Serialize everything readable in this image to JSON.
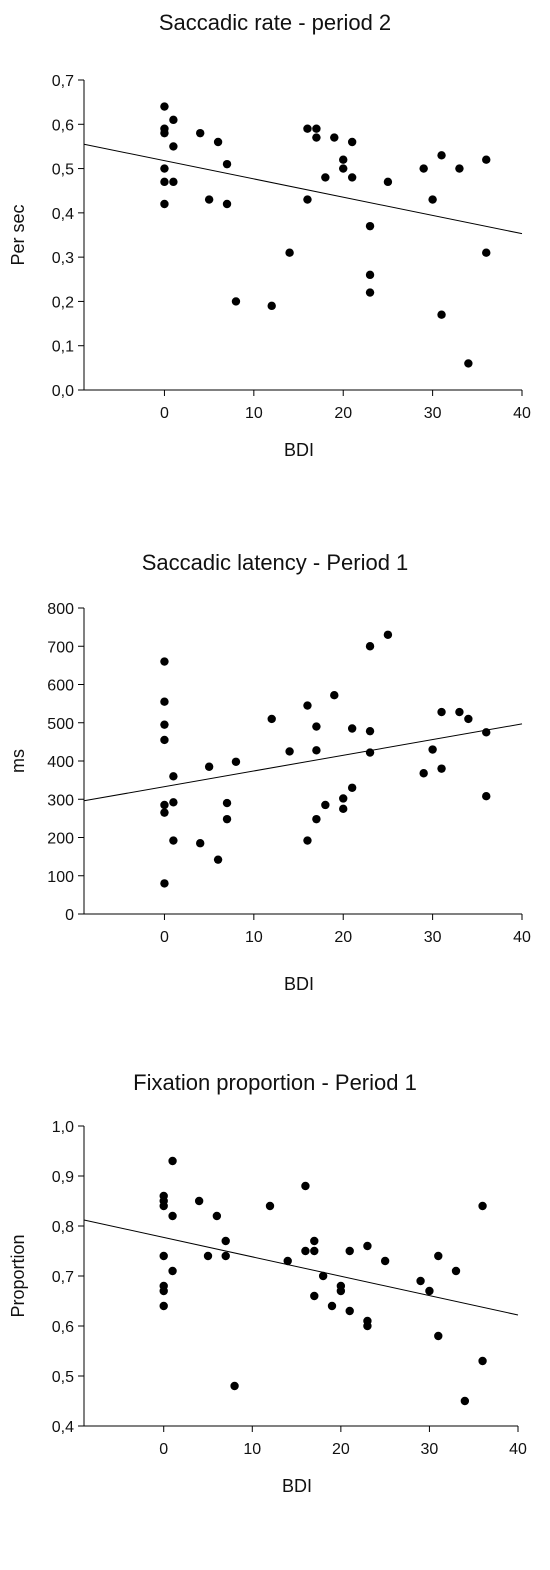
{
  "chart_data": [
    {
      "type": "scatter",
      "title": "Saccadic rate - period 2",
      "xlabel": "BDI",
      "ylabel": "Per sec",
      "xlim": [
        -9,
        40
      ],
      "ylim": [
        0,
        0.7
      ],
      "x_ticks": [
        "0",
        "10",
        "20",
        "30",
        "40"
      ],
      "x_tick_values": [
        0,
        10,
        20,
        30,
        40
      ],
      "y_ticks": [
        "0,0",
        "0,1",
        "0,2",
        "0,3",
        "0,4",
        "0,5",
        "0,6",
        "0,7"
      ],
      "y_tick_values": [
        0,
        0.1,
        0.2,
        0.3,
        0.4,
        0.5,
        0.6,
        0.7
      ],
      "grid": false,
      "legend": false,
      "trendline": {
        "x": [
          -9,
          40
        ],
        "y": [
          0.555,
          0.353
        ]
      },
      "points": [
        {
          "x": 0,
          "y": 0.64
        },
        {
          "x": 0,
          "y": 0.59
        },
        {
          "x": 0,
          "y": 0.58
        },
        {
          "x": 0,
          "y": 0.5
        },
        {
          "x": 0,
          "y": 0.47
        },
        {
          "x": 0,
          "y": 0.42
        },
        {
          "x": 1,
          "y": 0.61
        },
        {
          "x": 1,
          "y": 0.55
        },
        {
          "x": 1,
          "y": 0.47
        },
        {
          "x": 4,
          "y": 0.58
        },
        {
          "x": 5,
          "y": 0.43
        },
        {
          "x": 6,
          "y": 0.56
        },
        {
          "x": 7,
          "y": 0.51
        },
        {
          "x": 7,
          "y": 0.42
        },
        {
          "x": 8,
          "y": 0.2
        },
        {
          "x": 12,
          "y": 0.19
        },
        {
          "x": 14,
          "y": 0.31
        },
        {
          "x": 16,
          "y": 0.59
        },
        {
          "x": 16,
          "y": 0.43
        },
        {
          "x": 17,
          "y": 0.59
        },
        {
          "x": 17,
          "y": 0.57
        },
        {
          "x": 18,
          "y": 0.48
        },
        {
          "x": 19,
          "y": 0.57
        },
        {
          "x": 20,
          "y": 0.52
        },
        {
          "x": 20,
          "y": 0.5
        },
        {
          "x": 21,
          "y": 0.56
        },
        {
          "x": 21,
          "y": 0.48
        },
        {
          "x": 23,
          "y": 0.37
        },
        {
          "x": 23,
          "y": 0.26
        },
        {
          "x": 23,
          "y": 0.22
        },
        {
          "x": 25,
          "y": 0.47
        },
        {
          "x": 29,
          "y": 0.5
        },
        {
          "x": 30,
          "y": 0.43
        },
        {
          "x": 31,
          "y": 0.53
        },
        {
          "x": 31,
          "y": 0.17
        },
        {
          "x": 33,
          "y": 0.5
        },
        {
          "x": 34,
          "y": 0.06
        },
        {
          "x": 36,
          "y": 0.52
        },
        {
          "x": 36,
          "y": 0.31
        }
      ]
    },
    {
      "type": "scatter",
      "title": "Saccadic latency - Period 1",
      "xlabel": "BDI",
      "ylabel": "ms",
      "xlim": [
        -9,
        40
      ],
      "ylim": [
        0,
        800
      ],
      "x_ticks": [
        "0",
        "10",
        "20",
        "30",
        "40"
      ],
      "x_tick_values": [
        0,
        10,
        20,
        30,
        40
      ],
      "y_ticks": [
        "0",
        "100",
        "200",
        "300",
        "400",
        "500",
        "600",
        "700",
        "800"
      ],
      "y_tick_values": [
        0,
        100,
        200,
        300,
        400,
        500,
        600,
        700,
        800
      ],
      "grid": false,
      "legend": false,
      "trendline": {
        "x": [
          -9,
          40
        ],
        "y": [
          296,
          497
        ]
      },
      "points": [
        {
          "x": 0,
          "y": 660
        },
        {
          "x": 0,
          "y": 555
        },
        {
          "x": 0,
          "y": 495
        },
        {
          "x": 0,
          "y": 455
        },
        {
          "x": 0,
          "y": 285
        },
        {
          "x": 0,
          "y": 265
        },
        {
          "x": 0,
          "y": 80
        },
        {
          "x": 1,
          "y": 360
        },
        {
          "x": 1,
          "y": 292
        },
        {
          "x": 1,
          "y": 192
        },
        {
          "x": 4,
          "y": 185
        },
        {
          "x": 5,
          "y": 385
        },
        {
          "x": 6,
          "y": 142
        },
        {
          "x": 7,
          "y": 290
        },
        {
          "x": 7,
          "y": 248
        },
        {
          "x": 8,
          "y": 398
        },
        {
          "x": 12,
          "y": 510
        },
        {
          "x": 14,
          "y": 425
        },
        {
          "x": 16,
          "y": 545
        },
        {
          "x": 16,
          "y": 192
        },
        {
          "x": 17,
          "y": 490
        },
        {
          "x": 17,
          "y": 428
        },
        {
          "x": 17,
          "y": 248
        },
        {
          "x": 18,
          "y": 285
        },
        {
          "x": 19,
          "y": 572
        },
        {
          "x": 20,
          "y": 302
        },
        {
          "x": 20,
          "y": 275
        },
        {
          "x": 21,
          "y": 485
        },
        {
          "x": 21,
          "y": 330
        },
        {
          "x": 23,
          "y": 700
        },
        {
          "x": 23,
          "y": 478
        },
        {
          "x": 23,
          "y": 422
        },
        {
          "x": 25,
          "y": 730
        },
        {
          "x": 29,
          "y": 368
        },
        {
          "x": 30,
          "y": 430
        },
        {
          "x": 31,
          "y": 528
        },
        {
          "x": 31,
          "y": 380
        },
        {
          "x": 33,
          "y": 528
        },
        {
          "x": 34,
          "y": 510
        },
        {
          "x": 36,
          "y": 475
        },
        {
          "x": 36,
          "y": 308
        }
      ]
    },
    {
      "type": "scatter",
      "title": "Fixation proportion - Period 1",
      "xlabel": "BDI",
      "ylabel": "Proportion",
      "xlim": [
        -9,
        40
      ],
      "ylim": [
        0.4,
        1.0
      ],
      "x_ticks": [
        "0",
        "10",
        "20",
        "30",
        "40"
      ],
      "x_tick_values": [
        0,
        10,
        20,
        30,
        40
      ],
      "y_ticks": [
        "0,4",
        "0,5",
        "0,6",
        "0,7",
        "0,8",
        "0,9",
        "1,0"
      ],
      "y_tick_values": [
        0.4,
        0.5,
        0.6,
        0.7,
        0.8,
        0.9,
        1.0
      ],
      "grid": false,
      "legend": false,
      "trendline": {
        "x": [
          -9,
          40
        ],
        "y": [
          0.812,
          0.622
        ]
      },
      "points": [
        {
          "x": 0,
          "y": 0.86
        },
        {
          "x": 0,
          "y": 0.85
        },
        {
          "x": 0,
          "y": 0.84
        },
        {
          "x": 0,
          "y": 0.74
        },
        {
          "x": 0,
          "y": 0.68
        },
        {
          "x": 0,
          "y": 0.67
        },
        {
          "x": 0,
          "y": 0.64
        },
        {
          "x": 1,
          "y": 0.93
        },
        {
          "x": 1,
          "y": 0.82
        },
        {
          "x": 1,
          "y": 0.71
        },
        {
          "x": 4,
          "y": 0.85
        },
        {
          "x": 5,
          "y": 0.74
        },
        {
          "x": 6,
          "y": 0.82
        },
        {
          "x": 7,
          "y": 0.77
        },
        {
          "x": 7,
          "y": 0.74
        },
        {
          "x": 8,
          "y": 0.48
        },
        {
          "x": 12,
          "y": 0.84
        },
        {
          "x": 14,
          "y": 0.73
        },
        {
          "x": 16,
          "y": 0.88
        },
        {
          "x": 16,
          "y": 0.75
        },
        {
          "x": 17,
          "y": 0.77
        },
        {
          "x": 17,
          "y": 0.75
        },
        {
          "x": 17,
          "y": 0.66
        },
        {
          "x": 18,
          "y": 0.7
        },
        {
          "x": 19,
          "y": 0.64
        },
        {
          "x": 20,
          "y": 0.68
        },
        {
          "x": 20,
          "y": 0.67
        },
        {
          "x": 21,
          "y": 0.75
        },
        {
          "x": 21,
          "y": 0.63
        },
        {
          "x": 23,
          "y": 0.76
        },
        {
          "x": 23,
          "y": 0.61
        },
        {
          "x": 23,
          "y": 0.6
        },
        {
          "x": 25,
          "y": 0.73
        },
        {
          "x": 29,
          "y": 0.69
        },
        {
          "x": 30,
          "y": 0.67
        },
        {
          "x": 31,
          "y": 0.74
        },
        {
          "x": 31,
          "y": 0.58
        },
        {
          "x": 33,
          "y": 0.71
        },
        {
          "x": 34,
          "y": 0.45
        },
        {
          "x": 36,
          "y": 0.84
        },
        {
          "x": 36,
          "y": 0.53
        }
      ]
    }
  ],
  "style": {
    "marker_color": "#000000",
    "axis_color": "#000000",
    "trendline_color": "#000000"
  }
}
